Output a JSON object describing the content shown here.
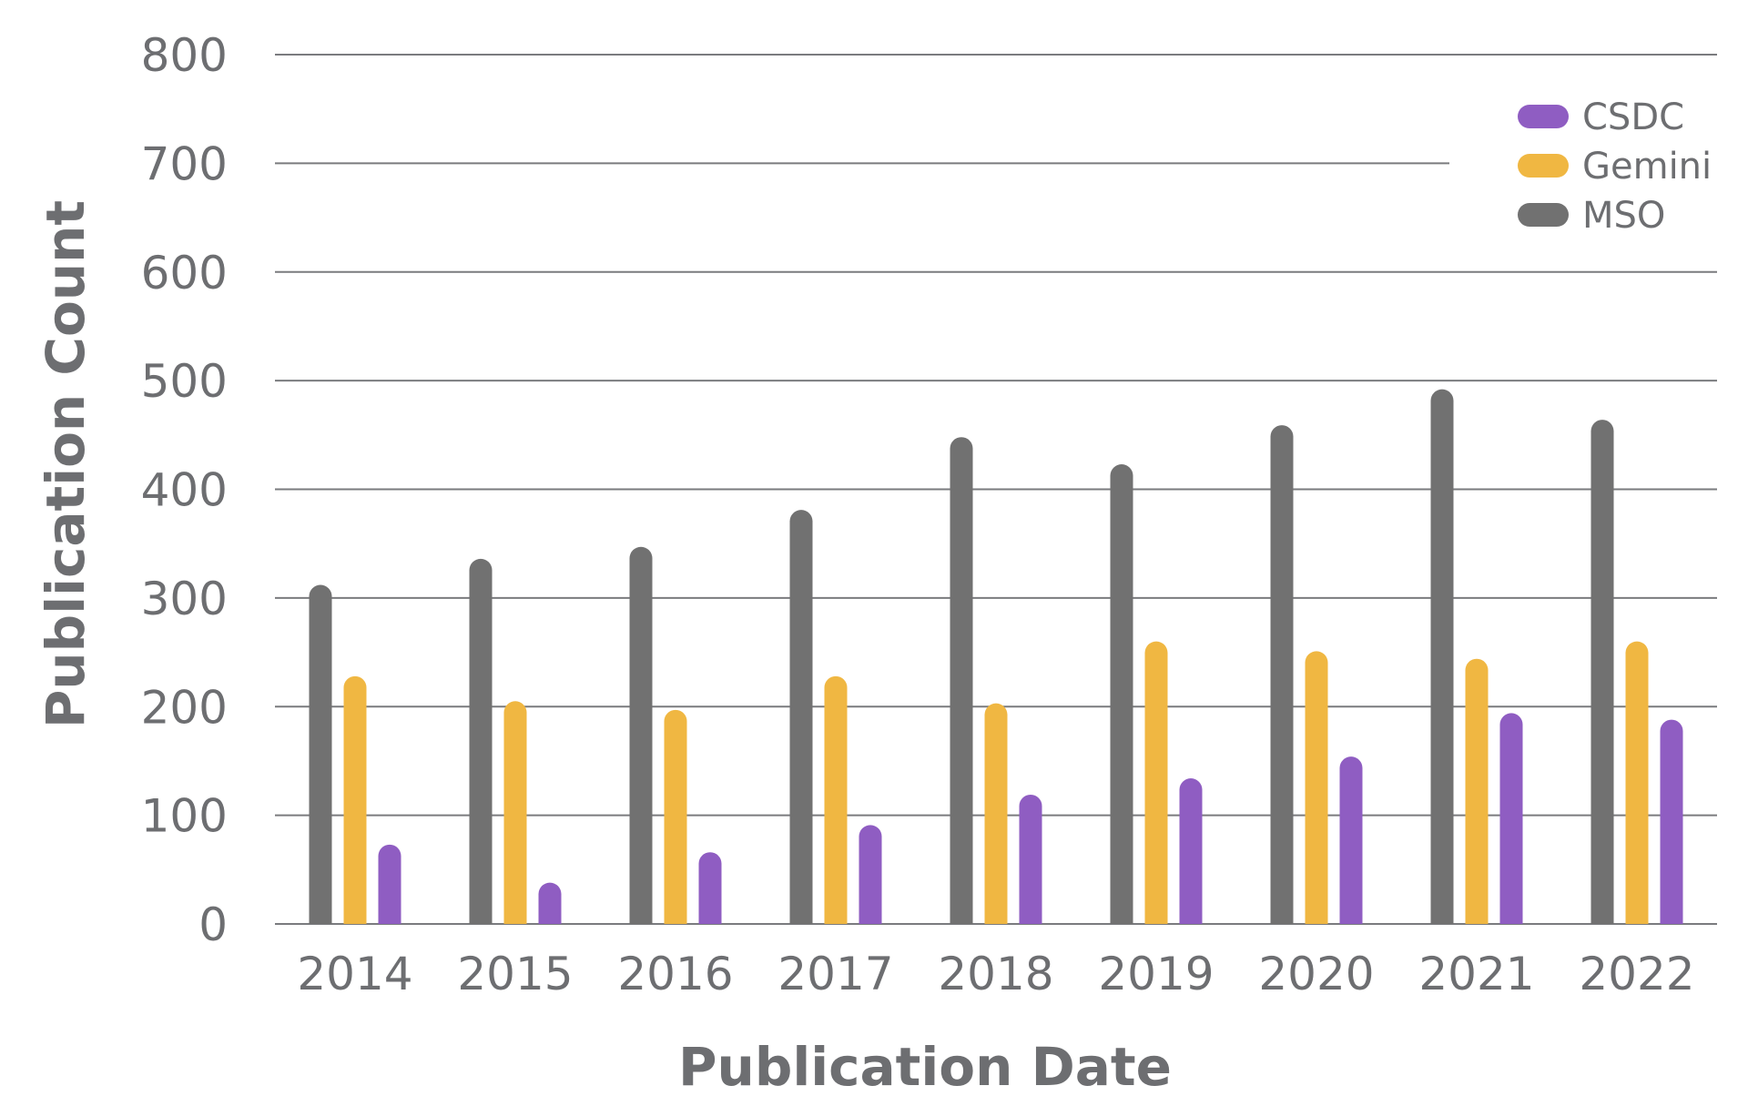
{
  "chart_data": {
    "type": "bar",
    "title": "",
    "xlabel": "Publication Date",
    "ylabel": "Publication Count",
    "categories": [
      "2014",
      "2015",
      "2016",
      "2017",
      "2018",
      "2019",
      "2020",
      "2021",
      "2022"
    ],
    "series": [
      {
        "name": "MSO",
        "color": "#717171",
        "values": [
          312,
          336,
          347,
          381,
          448,
          423,
          459,
          492,
          464
        ]
      },
      {
        "name": "Gemini",
        "color": "#f0b742",
        "values": [
          228,
          205,
          197,
          228,
          203,
          260,
          251,
          244,
          260
        ]
      },
      {
        "name": "CSDC",
        "color": "#8f5dc2",
        "values": [
          73,
          38,
          66,
          91,
          119,
          134,
          154,
          194,
          188
        ]
      }
    ],
    "ylim": [
      0,
      800
    ],
    "yticks": [
      "0",
      "100",
      "200",
      "300",
      "400",
      "500",
      "600",
      "700",
      "800"
    ],
    "grid": true,
    "legend": {
      "position": "top-right",
      "order": [
        "CSDC",
        "Gemini",
        "MSO"
      ]
    }
  }
}
